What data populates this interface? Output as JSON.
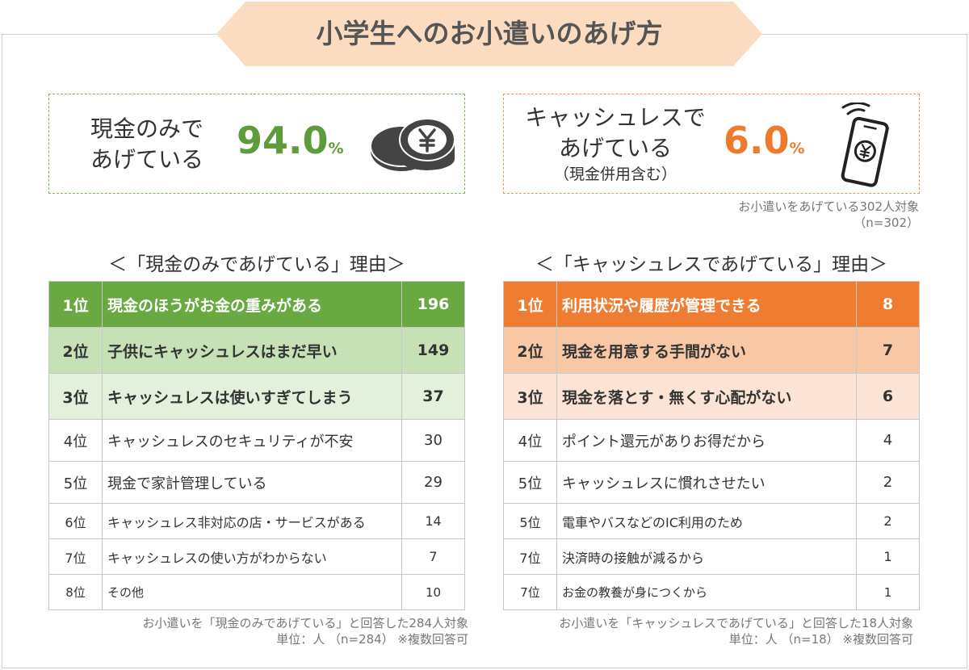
{
  "title": "小学生へのお小遣いのあげ方",
  "colors": {
    "banner": "#fbdcc1",
    "green_accent": "#5e9b3b",
    "orange_accent": "#ee7a2c",
    "green_rows": [
      "#6aa842",
      "#c7e1b7",
      "#e3f0db"
    ],
    "orange_rows": [
      "#ee7d31",
      "#f8c8a6",
      "#fbe4d6"
    ]
  },
  "cash_only": {
    "label_line1": "現金のみで",
    "label_line2": "あげている",
    "percent": "94.0",
    "percent_unit": "%",
    "icon": "coin-yen-icon"
  },
  "cashless": {
    "label_line1": "キャッシュレスで",
    "label_line2": "あげている",
    "label_sub": "（現金併用含む）",
    "percent": "6.0",
    "percent_unit": "%",
    "icon": "smartphone-yen-icon"
  },
  "target_note": {
    "line1": "お小遣いをあげている302人対象",
    "line2": "（n=302）"
  },
  "cash_reasons": {
    "title": "＜「現金のみであげている」理由＞",
    "rows": [
      {
        "rank": "1位",
        "reason": "現金のほうがお金の重みがある",
        "count": "196"
      },
      {
        "rank": "2位",
        "reason": "子供にキャッシュレスはまだ早い",
        "count": "149"
      },
      {
        "rank": "3位",
        "reason": "キャッシュレスは使いすぎてしまう",
        "count": "37"
      },
      {
        "rank": "4位",
        "reason": "キャッシュレスのセキュリティが不安",
        "count": "30"
      },
      {
        "rank": "5位",
        "reason": "現金で家計管理している",
        "count": "29"
      },
      {
        "rank": "6位",
        "reason": "キャッシュレス非対応の店・サービスがある",
        "count": "14"
      },
      {
        "rank": "7位",
        "reason": "キャッシュレスの使い方がわからない",
        "count": "7"
      },
      {
        "rank": "8位",
        "reason": "その他",
        "count": "10"
      }
    ],
    "note_line1": "お小遣いを「現金のみであげている」と回答した284人対象",
    "note_line2": "単位：人 （n=284） ※複数回答可"
  },
  "cashless_reasons": {
    "title": "＜「キャッシュレスであげている」理由＞",
    "rows": [
      {
        "rank": "1位",
        "reason": "利用状況や履歴が管理できる",
        "count": "8"
      },
      {
        "rank": "2位",
        "reason": "現金を用意する手間がない",
        "count": "7"
      },
      {
        "rank": "3位",
        "reason": "現金を落とす・無くす心配がない",
        "count": "6"
      },
      {
        "rank": "4位",
        "reason": "ポイント還元がありお得だから",
        "count": "4"
      },
      {
        "rank": "5位",
        "reason": "キャッシュレスに慣れさせたい",
        "count": "2"
      },
      {
        "rank": "5位",
        "reason": "電車やバスなどのIC利用のため",
        "count": "2"
      },
      {
        "rank": "7位",
        "reason": "決済時の接触が減るから",
        "count": "1"
      },
      {
        "rank": "7位",
        "reason": "お金の教養が身につくから",
        "count": "1"
      }
    ],
    "note_line1": "お小遣いを「キャッシュレスであげている」と回答した18人対象",
    "note_line2": "単位：人 （n=18） ※複数回答可"
  }
}
